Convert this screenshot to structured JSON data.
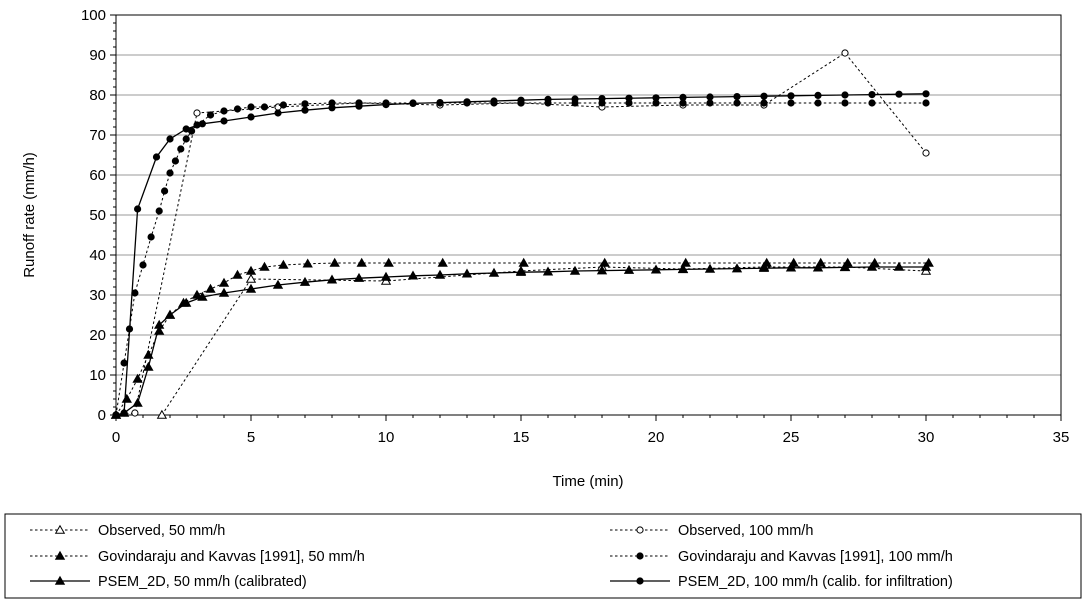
{
  "chart_data": {
    "type": "line",
    "title": "",
    "xlabel": "Time (min)",
    "ylabel": "Runoff rate (mm/h)",
    "xlim": [
      0,
      35
    ],
    "ylim": [
      0,
      100
    ],
    "xticks": [
      "0",
      "5",
      "10",
      "15",
      "20",
      "25",
      "30",
      "35"
    ],
    "yticks": [
      "0",
      "10",
      "20",
      "30",
      "40",
      "50",
      "60",
      "70",
      "80",
      "90",
      "100"
    ],
    "grid": "horizontal",
    "legend_position": "bottom",
    "series": [
      {
        "name": "Observed, 50 mm/h",
        "line": "dotted",
        "marker": "triangle-open",
        "x": [
          1.7,
          5.0,
          10.0,
          15.0,
          18.0,
          21.0,
          24.0,
          27.0,
          30.0
        ],
        "y": [
          0,
          34,
          33.5,
          36,
          37,
          36.5,
          37,
          37,
          36
        ]
      },
      {
        "name": "Observed, 100 mm/h",
        "line": "dotted",
        "marker": "circle-open",
        "x": [
          0,
          0.7,
          3.0,
          6.0,
          9.0,
          12.0,
          15.0,
          18.0,
          21.0,
          24.0,
          27.0,
          30.0
        ],
        "y": [
          0,
          0.5,
          75.5,
          77,
          78,
          77.5,
          78,
          77,
          77.5,
          77.5,
          90.5,
          65.5
        ]
      },
      {
        "name": "Govindaraju and Kavvas [1991], 50 mm/h",
        "line": "dotted",
        "marker": "triangle-filled",
        "x": [
          0,
          0.4,
          0.8,
          1.2,
          1.6,
          2.0,
          2.5,
          3.0,
          3.5,
          4.0,
          4.5,
          5.0,
          5.5,
          6.2,
          7.1,
          8.1,
          9.1,
          10.1,
          12.1,
          15.1,
          18.1,
          21.1,
          24.1,
          25.1,
          26.1,
          27.1,
          28.1,
          30.1
        ],
        "y": [
          0,
          4,
          9,
          15,
          21,
          25,
          28,
          30,
          31.5,
          33,
          35,
          36,
          37,
          37.5,
          37.8,
          38,
          38,
          38,
          38,
          38,
          38,
          38,
          38,
          38,
          38,
          38,
          38,
          38
        ]
      },
      {
        "name": "Govindaraju and Kavvas [1991], 100 mm/h",
        "line": "dotted",
        "marker": "circle-filled",
        "x": [
          0,
          0.3,
          0.5,
          0.7,
          1.0,
          1.3,
          1.6,
          1.8,
          2.0,
          2.2,
          2.4,
          2.6,
          2.8,
          3.0,
          3.5,
          4.0,
          4.5,
          5.0,
          5.5,
          6.2,
          7.0,
          8.0,
          9.0,
          10.0,
          11.0,
          12.0,
          13.0,
          14.0,
          15.0,
          16.0,
          17.0,
          18.0,
          19.0,
          20.0,
          21.0,
          22.0,
          23.0,
          24.0,
          25.0,
          26.0,
          27.0,
          28.0,
          30.0
        ],
        "y": [
          0,
          13,
          21.5,
          30.5,
          37.5,
          44.5,
          51,
          56,
          60.5,
          63.5,
          66.5,
          69,
          71,
          72.5,
          75,
          76,
          76.5,
          77,
          77,
          77.5,
          77.8,
          78,
          78,
          78,
          78,
          78,
          78,
          78,
          78,
          78,
          78,
          78,
          78,
          78,
          78,
          78,
          78,
          78,
          78,
          78,
          78,
          78,
          78
        ]
      },
      {
        "name": "PSEM_2D, 50 mm/h (calibrated)",
        "line": "solid",
        "marker": "triangle-filled",
        "x": [
          0,
          0.3,
          0.8,
          1.2,
          1.6,
          2.0,
          2.6,
          3.2,
          4.0,
          5.0,
          6.0,
          7.0,
          8.0,
          9.0,
          10.0,
          11.0,
          12.0,
          13.0,
          14.0,
          15.0,
          16.0,
          17.0,
          18.0,
          19.0,
          20.0,
          21.0,
          22.0,
          23.0,
          24.0,
          25.0,
          26.0,
          27.0,
          28.0,
          29.0,
          30.0
        ],
        "y": [
          0,
          0.5,
          3,
          12,
          22.5,
          25,
          28,
          29.5,
          30.5,
          31.5,
          32.5,
          33.2,
          33.8,
          34.2,
          34.5,
          34.8,
          35,
          35.3,
          35.5,
          35.7,
          35.8,
          36,
          36.1,
          36.2,
          36.3,
          36.4,
          36.5,
          36.6,
          36.7,
          36.8,
          36.8,
          36.9,
          37,
          37,
          37
        ]
      },
      {
        "name": "PSEM_2D, 100 mm/h (calib. for infiltration)",
        "line": "solid",
        "marker": "circle-filled",
        "x": [
          0,
          0.3,
          0.8,
          1.5,
          2.0,
          2.6,
          3.2,
          4.0,
          5.0,
          6.0,
          7.0,
          8.0,
          9.0,
          10.0,
          11.0,
          12.0,
          13.0,
          14.0,
          15.0,
          16.0,
          17.0,
          18.0,
          19.0,
          20.0,
          21.0,
          22.0,
          23.0,
          24.0,
          25.0,
          26.0,
          27.0,
          28.0,
          29.0,
          30.0
        ],
        "y": [
          0,
          0.5,
          51.5,
          64.5,
          69,
          71.5,
          72.8,
          73.5,
          74.5,
          75.5,
          76.2,
          76.8,
          77.2,
          77.6,
          77.9,
          78.1,
          78.3,
          78.5,
          78.7,
          78.9,
          79,
          79.1,
          79.2,
          79.3,
          79.4,
          79.5,
          79.6,
          79.7,
          79.8,
          79.9,
          80,
          80.1,
          80.2,
          80.3
        ]
      }
    ]
  }
}
